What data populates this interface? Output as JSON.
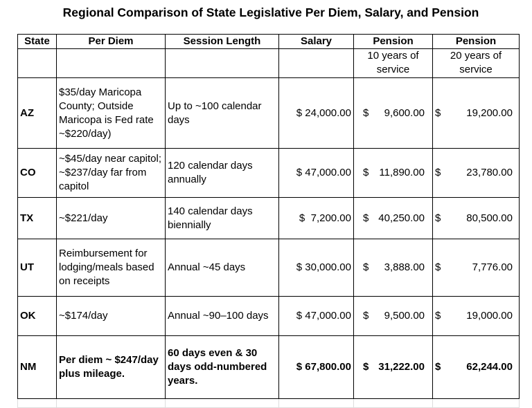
{
  "title": "Regional Comparison of State Legislative Per Diem, Salary, and Pension",
  "headers": [
    "State",
    "Per Diem",
    "Session Length",
    "Salary",
    "Pension",
    "Pension"
  ],
  "subheaders": [
    "",
    "",
    "",
    "",
    "10 years of service",
    "20 years of service"
  ],
  "rows": [
    {
      "state": "AZ",
      "per_diem": "$35/day Maricopa County; Outside Maricopa is Fed rate ~$220/day)",
      "session": "Up to ~100 calendar days",
      "salary": "$ 24,000.00",
      "p10": "9,600.00",
      "p20": "19,200.00"
    },
    {
      "state": "CO",
      "per_diem": "~$45/day near capitol; ~$237/day far from capitol",
      "session": "120 calendar days annually",
      "salary": "$ 47,000.00",
      "p10": "11,890.00",
      "p20": "23,780.00"
    },
    {
      "state": "TX",
      "per_diem": "~$221/day",
      "session": "140 calendar days biennially",
      "salary": "$  7,200.00",
      "p10": "40,250.00",
      "p20": "80,500.00"
    },
    {
      "state": "UT",
      "per_diem": "Reimbursement  for lodging/meals based on receipts",
      "session": "Annual ~45 days",
      "salary": "$ 30,000.00",
      "p10": "3,888.00",
      "p20": "7,776.00"
    },
    {
      "state": "OK",
      "per_diem": "~$174/day",
      "session": "Annual ~90–100 days",
      "salary": "$ 47,000.00",
      "p10": "9,500.00",
      "p20": "19,000.00"
    },
    {
      "state": "NM",
      "per_diem": "Per diem ~ $247/day plus mileage.",
      "session": "60 days even & 30 days odd-numbered years.",
      "salary": "$ 67,800.00",
      "p10": "31,222.00",
      "p20": "62,244.00"
    }
  ],
  "currency": "$"
}
